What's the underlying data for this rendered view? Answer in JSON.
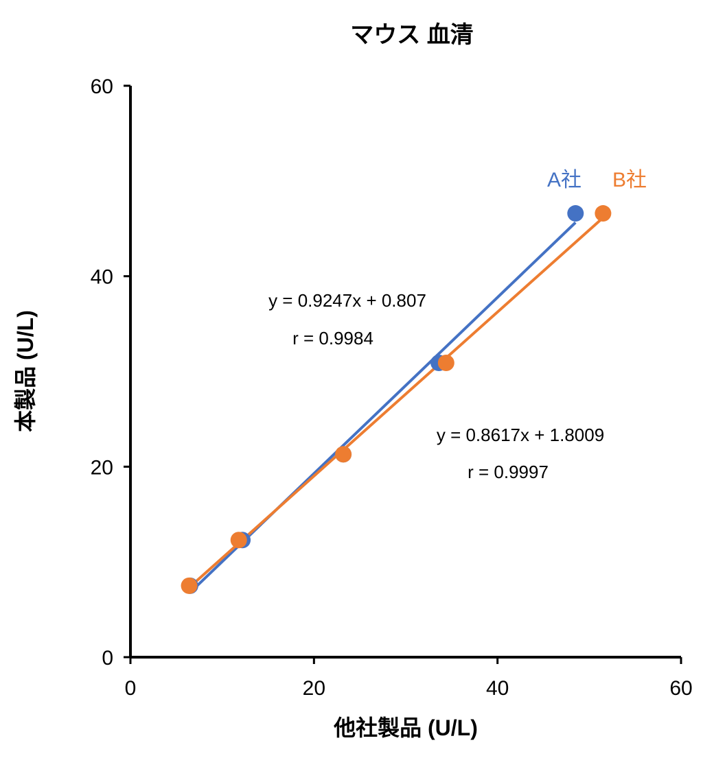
{
  "chart_data": {
    "type": "scatter",
    "title": "マウス 血清",
    "xlabel": "他社製品 (U/L)",
    "ylabel": "本製品 (U/L)",
    "xlim": [
      0,
      60
    ],
    "ylim": [
      0,
      60
    ],
    "xticks": [
      0,
      20,
      40,
      60
    ],
    "yticks": [
      0,
      20,
      40,
      60
    ],
    "grid": false,
    "series": [
      {
        "name": "A社",
        "color": "#4472C4",
        "x": [
          6.5,
          12.2,
          23.2,
          33.6,
          48.5
        ],
        "y": [
          7.5,
          12.3,
          21.3,
          30.9,
          46.6
        ],
        "fit_x_range": [
          6.5,
          48.5
        ],
        "equation": "y = 0.9247x + 0.807",
        "r": "r = 0.9984"
      },
      {
        "name": "B社",
        "color": "#ED7D31",
        "x": [
          6.4,
          11.8,
          23.2,
          34.4,
          51.5
        ],
        "y": [
          7.5,
          12.3,
          21.3,
          30.9,
          46.6
        ],
        "fit_x_range": [
          6.4,
          51.5
        ],
        "equation": "y = 0.8617x + 1.8009",
        "r": "r = 0.9997"
      }
    ]
  }
}
